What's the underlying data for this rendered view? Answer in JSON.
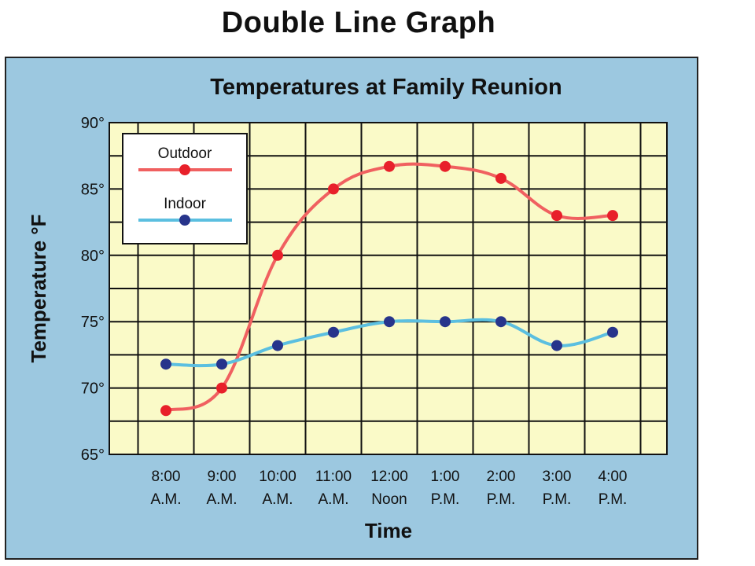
{
  "page": {
    "title": "Double Line Graph"
  },
  "colors": {
    "panel_bg": "#9cc8e0",
    "plot_bg": "#fafac8",
    "grid": "#111111",
    "outdoor_line": "#f06060",
    "outdoor_marker": "#e8202a",
    "indoor_line": "#5bbfe0",
    "indoor_marker": "#27348b"
  },
  "chart_data": {
    "type": "line",
    "title": "Temperatures at Family Reunion",
    "xlabel": "Time",
    "ylabel": "Temperature °F",
    "ylim": [
      65,
      90
    ],
    "y_ticks": [
      "90°",
      "85°",
      "80°",
      "75°",
      "70°",
      "65°"
    ],
    "categories": [
      [
        "8:00",
        "A.M."
      ],
      [
        "9:00",
        "A.M."
      ],
      [
        "10:00",
        "A.M."
      ],
      [
        "11:00",
        "A.M."
      ],
      [
        "12:00",
        "Noon"
      ],
      [
        "1:00",
        "P.M."
      ],
      [
        "2:00",
        "P.M."
      ],
      [
        "3:00",
        "P.M."
      ],
      [
        "4:00",
        "P.M."
      ]
    ],
    "series": [
      {
        "name": "Outdoor",
        "values": [
          68.3,
          70,
          80,
          85,
          86.7,
          86.7,
          85.8,
          83,
          83
        ]
      },
      {
        "name": "Indoor",
        "values": [
          71.8,
          71.8,
          73.2,
          74.2,
          75,
          75,
          75,
          73.2,
          74.2
        ]
      }
    ],
    "grid": true,
    "legend": "top-left"
  }
}
